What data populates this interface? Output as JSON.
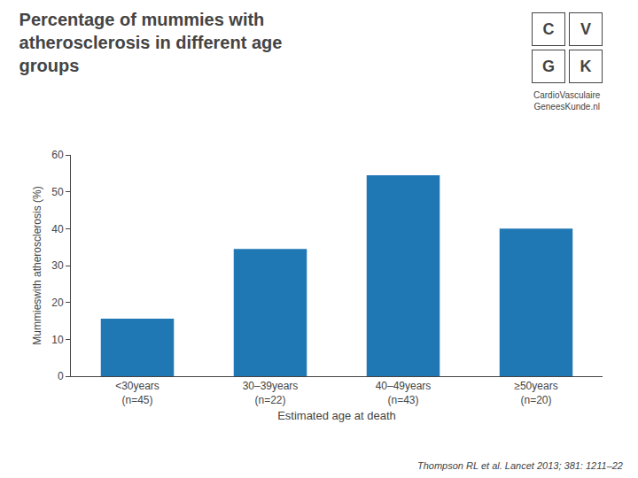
{
  "chart_data": {
    "type": "bar",
    "title": "Percentage of mummies with\natherosclerosis in different age\ngroups",
    "categories": [
      "<30years\n(n=45)",
      "30–39years\n(n=22)",
      "40–49years\n(n=43)",
      "≥50years\n(n=20)"
    ],
    "values": [
      15.6,
      34.5,
      54.5,
      40.0
    ],
    "xlabel": "Estimated age at death",
    "ylabel": "Mummieswith atherosclerosis (%)",
    "ylim": [
      0,
      60
    ],
    "yticks": [
      0,
      10,
      20,
      30,
      40,
      50,
      60
    ],
    "grid": false,
    "annotations": [
      "Thompson RL et al. Lancet 2013; 381: 1211–22",
      "C",
      "V",
      "G",
      "K",
      "CardioVasculaire\nGeneesKunde.nl"
    ]
  }
}
